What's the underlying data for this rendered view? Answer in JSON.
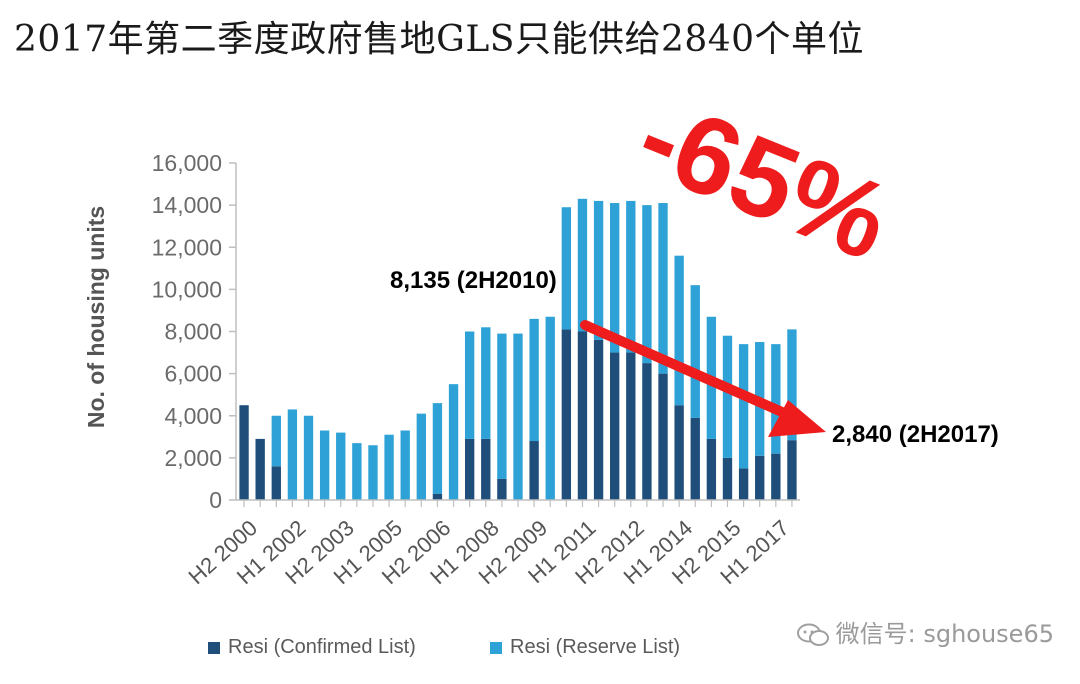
{
  "title": "2017年第二季度政府售地GLS只能供给2840个单位",
  "watermark": "微信号: sghouse65",
  "chart_data": {
    "type": "bar",
    "stacked": true,
    "ylabel": "No. of housing units",
    "ylim": [
      0,
      16000
    ],
    "yticks": [
      0,
      2000,
      4000,
      6000,
      8000,
      10000,
      12000,
      14000,
      16000
    ],
    "ytick_labels": [
      "0",
      "2,000",
      "4,000",
      "6,000",
      "8,000",
      "10,000",
      "12,000",
      "14,000",
      "16,000"
    ],
    "categories": [
      "H2 2000",
      "H1 2001",
      "H2 2001",
      "H1 2002",
      "H2 2002",
      "H1 2003",
      "H2 2003",
      "H1 2004",
      "H2 2004",
      "H1 2005",
      "H2 2005",
      "H1 2006",
      "H2 2006",
      "H1 2007",
      "H2 2007",
      "H1 2008",
      "H2 2008",
      "H1 2009",
      "H2 2009",
      "H1 2010",
      "H2 2010",
      "H1 2011",
      "H2 2011",
      "H1 2012",
      "H2 2012",
      "H1 2013",
      "H2 2013",
      "H1 2014",
      "H2 2014",
      "H1 2015",
      "H2 2015",
      "H1 2016",
      "H2 2016",
      "H1 2017",
      "H2 2017"
    ],
    "xtick_labels": [
      "H2 2000",
      "H1 2002",
      "H2 2003",
      "H1 2005",
      "H2 2006",
      "H1 2008",
      "H2 2009",
      "H1 2011",
      "H2 2012",
      "H1 2014",
      "H2 2015",
      "H1 2017"
    ],
    "series": [
      {
        "name": "Resi (Confirmed List)",
        "color": "#1e4e79",
        "values": [
          4500,
          2900,
          1600,
          0,
          0,
          0,
          0,
          0,
          0,
          0,
          0,
          0,
          300,
          0,
          2900,
          2900,
          1000,
          0,
          2800,
          0,
          8100,
          8000,
          7600,
          7000,
          7000,
          6500,
          6000,
          4500,
          3900,
          2900,
          2000,
          1500,
          2100,
          2200,
          2840
        ]
      },
      {
        "name": "Resi (Reserve List)",
        "color": "#2ea2d6",
        "values": [
          0,
          0,
          2400,
          4300,
          4000,
          3300,
          3200,
          2700,
          2600,
          3100,
          3300,
          4100,
          4300,
          5500,
          5100,
          5300,
          6900,
          7900,
          5800,
          8700,
          5800,
          6300,
          6600,
          7100,
          7200,
          7500,
          8100,
          7100,
          6300,
          5800,
          5800,
          5900,
          5400,
          5200,
          5260
        ]
      }
    ],
    "annotations": [
      {
        "text": "8,135 (2H2010)"
      },
      {
        "text": "2,840 (2H2017)"
      },
      {
        "text": "-65%",
        "color": "#ee1c1c"
      }
    ],
    "legend_position": "bottom"
  }
}
